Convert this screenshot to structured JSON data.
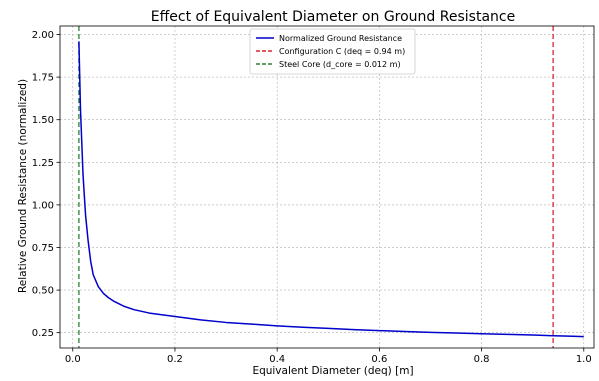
{
  "chart_data": {
    "type": "line",
    "title": "Effect of Equivalent Diameter on Ground Resistance",
    "xlabel": "Equivalent Diameter (deq) [m]",
    "ylabel": "Relative Ground Resistance (normalized)",
    "xlim": [
      -0.025,
      1.02
    ],
    "ylim": [
      0.16,
      2.05
    ],
    "x_ticks": [
      0.0,
      0.2,
      0.4,
      0.6,
      0.8,
      1.0
    ],
    "x_tick_labels": [
      "0.0",
      "0.2",
      "0.4",
      "0.6",
      "0.8",
      "1.0"
    ],
    "y_ticks": [
      0.25,
      0.5,
      0.75,
      1.0,
      1.25,
      1.5,
      1.75,
      2.0
    ],
    "y_tick_labels": [
      "0.25",
      "0.50",
      "0.75",
      "1.00",
      "1.25",
      "1.50",
      "1.75",
      "2.00"
    ],
    "grid": true,
    "legend_position": "top-center",
    "series": [
      {
        "name": "Normalized Ground Resistance",
        "color": "#0000cc",
        "style": "solid",
        "x": [
          0.012,
          0.015,
          0.02,
          0.025,
          0.03,
          0.035,
          0.04,
          0.05,
          0.06,
          0.07,
          0.08,
          0.09,
          0.1,
          0.12,
          0.15,
          0.2,
          0.25,
          0.3,
          0.35,
          0.4,
          0.45,
          0.5,
          0.55,
          0.6,
          0.65,
          0.7,
          0.75,
          0.8,
          0.85,
          0.9,
          0.94,
          0.97,
          1.0
        ],
        "y": [
          1.96,
          1.57,
          1.18,
          0.94,
          0.79,
          0.67,
          0.59,
          0.52,
          0.48,
          0.455,
          0.435,
          0.42,
          0.405,
          0.385,
          0.365,
          0.345,
          0.325,
          0.31,
          0.3,
          0.29,
          0.282,
          0.275,
          0.268,
          0.262,
          0.257,
          0.252,
          0.248,
          0.244,
          0.24,
          0.236,
          0.232,
          0.23,
          0.227
        ]
      },
      {
        "name": "Configuration C (deq = 0.94 m)",
        "color": "#d62728",
        "style": "dashed-vertical",
        "x_value": 0.94
      },
      {
        "name": "Steel Core (d_core = 0.012 m)",
        "color": "#2e7d32",
        "style": "dashed-vertical",
        "x_value": 0.012
      }
    ]
  }
}
